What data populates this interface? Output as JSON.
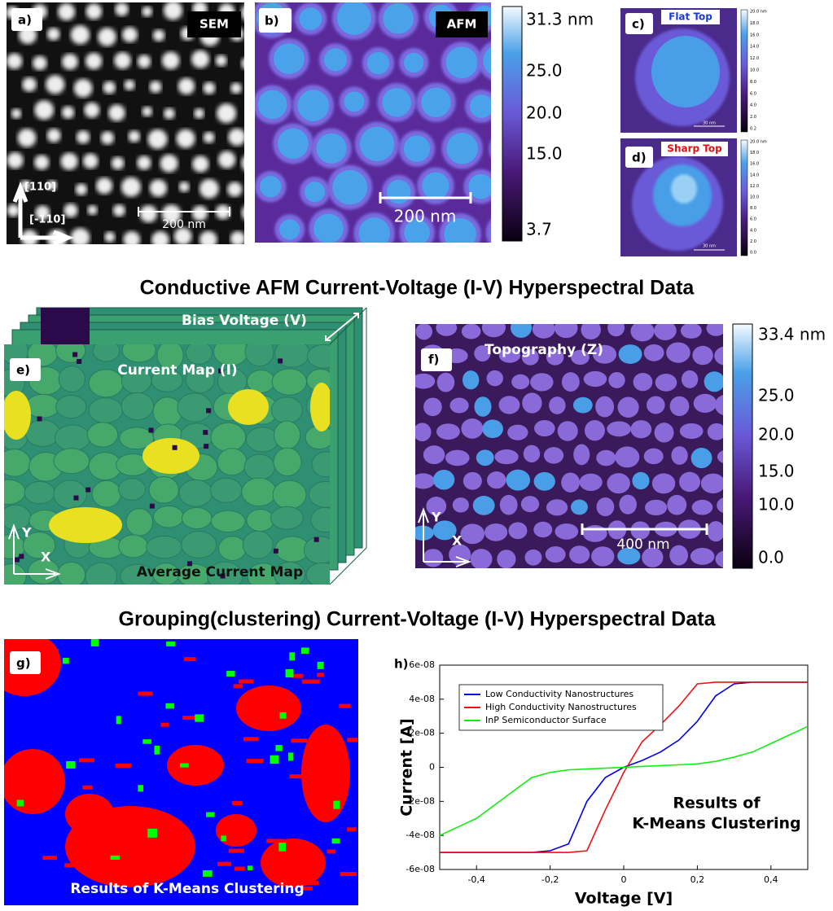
{
  "panels": {
    "a": {
      "label": "a)",
      "tag": "SEM",
      "dir_y": "[110]",
      "dir_x": "[-110]",
      "scale": "200 nm"
    },
    "b": {
      "label": "b)",
      "tag": "AFM",
      "scale": "200 nm",
      "colorbar": [
        "31.3 nm",
        "25.0",
        "20.0",
        "15.0",
        "3.7"
      ]
    },
    "c": {
      "label": "c)",
      "tag": "Flat Top",
      "scale": "30 nm",
      "colorbar": [
        "20.0 nm",
        "18.0",
        "16.0",
        "14.0",
        "12.0",
        "10.0",
        "8.0",
        "6.0",
        "4.0",
        "2.0",
        "0.2"
      ]
    },
    "d": {
      "label": "d)",
      "tag": "Sharp Top",
      "scale": "30 nm",
      "colorbar": [
        "20.0 nm",
        "18.0",
        "16.0",
        "14.0",
        "12.0",
        "10.0",
        "8.0",
        "6.0",
        "4.0",
        "2.0",
        "0.0"
      ]
    },
    "e": {
      "label": "e)",
      "bias": "Bias Voltage (V)",
      "current": "Current Map (I)",
      "axis_y": "Y",
      "axis_x": "X",
      "caption": "Average Current Map"
    },
    "f": {
      "label": "f)",
      "tag": "Topography (Z)",
      "scale": "400 nm",
      "axis_y": "Y",
      "axis_x": "X",
      "colorbar": [
        "33.4 nm",
        "25.0",
        "20.0",
        "15.0",
        "10.0",
        "0.0"
      ]
    },
    "g": {
      "label": "g)",
      "caption": "Results of K-Means Clustering"
    }
  },
  "headings": [
    "Conductive AFM Current-Voltage (I-V) Hyperspectral Data",
    "Grouping(clustering) Current-Voltage (I-V) Hyperspectral Data"
  ],
  "chart_data": {
    "type": "line",
    "label": "h)",
    "x_label": "Voltage [V]",
    "y_label": "Current [A]",
    "annotation": [
      "Results of",
      "K-Means Clustering"
    ],
    "legend": "upper left",
    "x": [
      -0.5,
      -0.45,
      -0.4,
      -0.35,
      -0.3,
      -0.25,
      -0.2,
      -0.15,
      -0.1,
      -0.05,
      0,
      0.05,
      0.1,
      0.15,
      0.2,
      0.25,
      0.3,
      0.35,
      0.4,
      0.45,
      0.5
    ],
    "xlim": [
      -0.5,
      0.5
    ],
    "xticks": [
      {
        "value": -0.4,
        "label": "-0,4"
      },
      {
        "value": -0.2,
        "label": "-0,2"
      },
      0,
      {
        "value": 0.2,
        "label": "0,2"
      },
      {
        "value": 0.4,
        "label": "0,4"
      }
    ],
    "ylim": [
      -6e-08,
      6e-08
    ],
    "yticks": [
      {
        "value": -6e-08,
        "label": "-6e-08"
      },
      {
        "value": -4e-08,
        "label": "-4e-08"
      },
      {
        "value": -2e-08,
        "label": "-2e-08"
      },
      0,
      {
        "value": 2e-08,
        "label": "2e-08"
      },
      {
        "value": 4e-08,
        "label": "4e-08"
      },
      {
        "value": 6e-08,
        "label": "6e-08"
      }
    ],
    "series": [
      {
        "name": "Low Conductivity Nanostructures",
        "color": "#0000ee",
        "values": [
          -5e-08,
          -5e-08,
          -5e-08,
          -5e-08,
          -5e-08,
          -5e-08,
          -4.9e-08,
          -4.5e-08,
          -2e-08,
          -6e-09,
          0,
          4e-09,
          9e-09,
          1.6e-08,
          2.7e-08,
          4.2e-08,
          4.9e-08,
          5e-08,
          5e-08,
          5e-08,
          5e-08
        ]
      },
      {
        "name": "High Conductivity Nanostructures",
        "color": "#ee1111",
        "values": [
          -5e-08,
          -5e-08,
          -5e-08,
          -5e-08,
          -5e-08,
          -5e-08,
          -5e-08,
          -5e-08,
          -4.9e-08,
          -2.5e-08,
          -3e-09,
          1.5e-08,
          2.5e-08,
          3.6e-08,
          4.9e-08,
          5e-08,
          5e-08,
          5e-08,
          5e-08,
          5e-08,
          5e-08
        ]
      },
      {
        "name": "InP Semiconductor Surface",
        "color": "#11ee11",
        "values": [
          -4e-08,
          -3.5e-08,
          -3e-08,
          -2.2e-08,
          -1.4e-08,
          -6e-09,
          -3e-09,
          -1.5e-09,
          -1e-09,
          -5e-10,
          0,
          5e-10,
          1e-09,
          1.5e-09,
          2e-09,
          3.5e-09,
          6e-09,
          9e-09,
          1.4e-08,
          1.9e-08,
          2.4e-08
        ]
      }
    ]
  }
}
